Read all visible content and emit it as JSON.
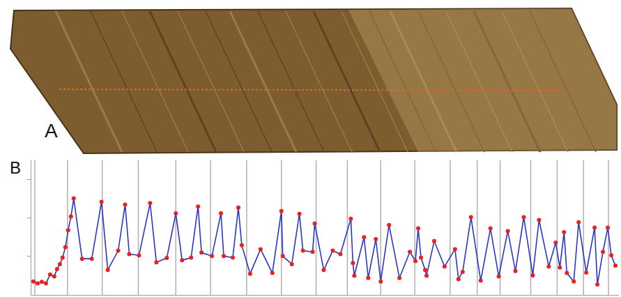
{
  "chart_data": {
    "type": "line",
    "annotations": [
      "A",
      "B"
    ],
    "x": [
      3,
      9,
      15,
      21,
      27,
      33,
      37,
      41,
      45,
      49,
      53,
      57,
      61,
      73,
      87,
      101,
      110,
      125,
      135,
      141,
      155,
      171,
      180,
      195,
      208,
      217,
      230,
      240,
      245,
      260,
      273,
      277,
      290,
      298,
      303,
      315,
      330,
      347,
      360,
      362,
      375,
      386,
      391,
      405,
      408,
      421,
      434,
      445,
      460,
      463,
      465,
      479,
      485,
      496,
      503,
      515,
      530,
      545,
      553,
      557,
      561,
      567,
      569,
      580,
      595,
      610,
      615,
      621,
      633,
      647,
      661,
      673,
      686,
      697,
      709,
      722,
      731,
      745,
      755,
      761,
      767,
      771,
      781,
      788,
      799,
      811,
      815,
      823,
      830,
      835,
      841
    ],
    "series": [
      {
        "color": "#2a35c8",
        "marker": "circle",
        "values": [
          0.35,
          0.3,
          0.34,
          0.3,
          0.53,
          0.48,
          0.67,
          0.8,
          0.97,
          1.24,
          1.68,
          2.04,
          2.51,
          0.94,
          0.94,
          2.42,
          0.65,
          1.15,
          2.35,
          1.06,
          1.03,
          2.39,
          0.85,
          0.96,
          2.12,
          0.9,
          0.97,
          2.3,
          1.1,
          1.01,
          2.12,
          1.01,
          0.97,
          2.27,
          1.29,
          0.55,
          1.19,
          0.57,
          2.18,
          1.01,
          0.8,
          2.11,
          1.15,
          1.12,
          1.86,
          0.65,
          1.15,
          1.06,
          1.98,
          0.83,
          0.5,
          1.5,
          0.44,
          1.45,
          0.35,
          1.82,
          0.44,
          1.12,
          0.88,
          1.73,
          0.97,
          0.65,
          0.5,
          1.4,
          0.74,
          1.19,
          0.41,
          0.6,
          2.02,
          0.37,
          1.73,
          0.48,
          1.66,
          0.62,
          2.02,
          0.51,
          1.95,
          0.74,
          1.36,
          0.71,
          1.63,
          0.57,
          0.35,
          1.89,
          0.58,
          1.75,
          0.27,
          1.12,
          1.75,
          1.03,
          0.76
        ]
      }
    ],
    "vlines": [
      5,
      52,
      102,
      154,
      208,
      258,
      310,
      360,
      410,
      455,
      503,
      552,
      603,
      642,
      675,
      719,
      757,
      795,
      831
    ],
    "xlim": [
      0,
      846
    ],
    "ylim": [
      0,
      3.5
    ],
    "xticks": [],
    "yticks": [
      1,
      2,
      3
    ],
    "tick_labels": false,
    "grid": false
  }
}
